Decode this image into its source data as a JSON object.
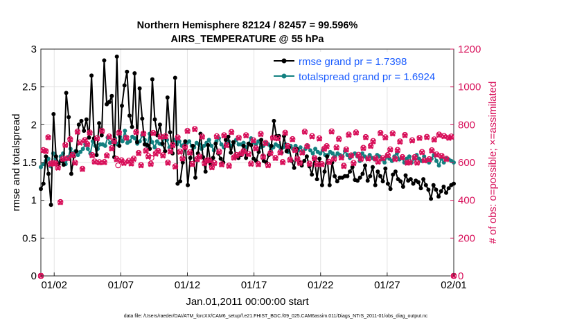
{
  "chart_data": {
    "type": "line",
    "title_line1": "Northern Hemisphere 82124 / 82457 = 99.596%",
    "title_line2": "AIRS_TEMPERATURE @ 55 hPa",
    "xlabel": "Jan.01,2011 00:00:00 start",
    "ylabel_left": "rmse and totalspread",
    "ylabel_right": "# of obs: o=possible; ×=assimilated",
    "footnote": "data file: /Users/raeder/DAI/ATM_forcXX/CAM6_setup/f.e21.FHIST_BGC.f09_025.CAM6assim.011/Diags_NTrS_2011-01/obs_diag_output.nc",
    "xlim": [
      0,
      31
    ],
    "ylim_left": [
      0,
      3
    ],
    "ylim_right": [
      0,
      1200
    ],
    "x_ticks": [
      1,
      6,
      11,
      16,
      21,
      26,
      31
    ],
    "x_tick_labels": [
      "01/02",
      "01/07",
      "01/12",
      "01/17",
      "01/22",
      "01/27",
      "02/01"
    ],
    "y_left_ticks": [
      "0",
      "0.5",
      "1",
      "1.5",
      "2",
      "2.5",
      "3"
    ],
    "y_right_ticks": [
      "0",
      "200",
      "400",
      "600",
      "800",
      "1000",
      "1200"
    ],
    "colors": {
      "rmse": "#000000",
      "spread": "#138080",
      "obs": "#d8105a",
      "legend_text": "#1a5cff"
    },
    "legend": [
      {
        "name": "rmse grand pr = 1.7398",
        "key": "rmse"
      },
      {
        "name": "totalspread grand pr = 1.6924",
        "key": "spread"
      }
    ],
    "series": [
      {
        "name": "rmse",
        "values": [
          1.15,
          1.22,
          1.58,
          1.35,
          0.94,
          2.14,
          1.58,
          1.48,
          1.52,
          1.47,
          2.42,
          2.1,
          1.35,
          1.58,
          1.65,
          2.0,
          2.05,
          1.92,
          2.07,
          1.83,
          2.65,
          1.82,
          1.6,
          2.02,
          1.86,
          2.85,
          2.27,
          2.3,
          2.38,
          1.57,
          2.9,
          1.72,
          2.25,
          2.52,
          2.7,
          2.12,
          1.97,
          2.68,
          1.77,
          2.48,
          2.08,
          1.74,
          1.73,
          1.68,
          2.6,
          2.07,
          1.86,
          2.0,
          1.75,
          1.65,
          2.36,
          1.9,
          1.62,
          2.62,
          1.22,
          1.25,
          1.5,
          1.78,
          1.2,
          1.56,
          1.72,
          1.3,
          1.62,
          1.88,
          1.57,
          1.38,
          1.73,
          1.48,
          1.56,
          1.75,
          1.62,
          1.55,
          1.5,
          1.8,
          1.84,
          1.63,
          1.77,
          1.58,
          1.56,
          1.6,
          1.72,
          1.56,
          1.75,
          1.73,
          1.55,
          1.52,
          1.64,
          1.8,
          1.52,
          1.5,
          1.6,
          1.72,
          2.05,
          1.85,
          1.85,
          1.63,
          1.85,
          1.65,
          1.7,
          1.52,
          1.43,
          1.68,
          1.5,
          1.46,
          1.52,
          1.58,
          1.45,
          1.34,
          1.55,
          1.28,
          1.55,
          1.2,
          1.38,
          1.58,
          1.2,
          1.5,
          1.32,
          1.25,
          1.3,
          1.3,
          1.32,
          1.32,
          1.38,
          1.44,
          1.27,
          1.26,
          1.3,
          1.35,
          1.46,
          1.26,
          1.32,
          1.44,
          1.2,
          1.38,
          1.32,
          1.25,
          1.42,
          1.22,
          1.15,
          1.34,
          1.38,
          1.28,
          1.25,
          1.18,
          1.33,
          1.26,
          1.28,
          1.22,
          1.26,
          1.24,
          1.16,
          1.28,
          1.2,
          1.14,
          1.02,
          1.2,
          1.14,
          1.05,
          1.12,
          1.18,
          1.1,
          1.16,
          1.2,
          1.22
        ]
      },
      {
        "name": "totalspread",
        "values": [
          1.44,
          1.48,
          1.52,
          1.55,
          1.45,
          1.62,
          1.55,
          1.48,
          1.58,
          1.62,
          1.48,
          1.56,
          1.68,
          1.62,
          1.65,
          1.6,
          1.64,
          1.68,
          1.74,
          1.68,
          1.62,
          1.78,
          1.72,
          1.68,
          1.74,
          1.74,
          1.72,
          1.83,
          1.76,
          1.78,
          1.82,
          1.74,
          1.84,
          1.78,
          1.92,
          1.76,
          1.78,
          1.84,
          1.82,
          1.75,
          1.78,
          1.86,
          1.8,
          1.72,
          1.88,
          1.77,
          1.7,
          1.78,
          1.75,
          1.74,
          1.82,
          1.8,
          1.7,
          1.72,
          1.8,
          1.74,
          1.78,
          1.72,
          1.74,
          1.76,
          1.78,
          1.72,
          1.7,
          1.76,
          1.74,
          1.68,
          1.72,
          1.76,
          1.8,
          1.72,
          1.66,
          1.78,
          1.82,
          1.74,
          1.7,
          1.75,
          1.78,
          1.72,
          1.76,
          1.8,
          1.74,
          1.74,
          1.76,
          1.7,
          1.75,
          1.82,
          1.77,
          1.74,
          1.78,
          1.7,
          1.72,
          1.76,
          1.74,
          1.66,
          1.7,
          1.74,
          1.72,
          1.68,
          1.7,
          1.74,
          1.64,
          1.72,
          1.68,
          1.72,
          1.66,
          1.7,
          1.64,
          1.68,
          1.72,
          1.66,
          1.62,
          1.68,
          1.64,
          1.62,
          1.66,
          1.6,
          1.6,
          1.64,
          1.62,
          1.58,
          1.62,
          1.6,
          1.58,
          1.65,
          1.6,
          1.56,
          1.6,
          1.62,
          1.58,
          1.52,
          1.62,
          1.58,
          1.55,
          1.6,
          1.56,
          1.54,
          1.6,
          1.58,
          1.54,
          1.5,
          1.58,
          1.55,
          1.52,
          1.58,
          1.62,
          1.54,
          1.56,
          1.5,
          1.55,
          1.58,
          1.5,
          1.55,
          1.6,
          1.55,
          1.52,
          1.58,
          1.52,
          1.5,
          1.55,
          1.6,
          1.52,
          1.46,
          1.55,
          1.5,
          1.55,
          1.54,
          1.52,
          1.5
        ]
      },
      {
        "name": "obs_possible",
        "values": [
          0,
          666,
          661,
          734,
          594,
          599,
          596,
          574,
          391,
          620,
          694,
          624,
          724,
          641,
          600,
          764,
          707,
          567,
          719,
          698,
          759,
          640,
          606,
          729,
          602,
          768,
          603,
          638,
          738,
          676,
          714,
          619,
          759,
          612,
          599,
          732,
          610,
          596,
          621,
          762,
          651,
          587,
          754,
          664,
          634,
          594,
          757,
          649,
          662,
          738,
          639,
          739,
          600,
          660,
          693,
          580,
          733,
          658,
          622,
          683,
          768,
          654,
          593,
          778,
          619,
          632,
          738,
          598,
          612,
          612,
          576,
          598,
          739,
          658,
          591,
          745,
          693,
          584,
          762,
          627,
          639,
          732,
          648,
          661,
          745,
          646,
          595,
          718,
          676,
          592,
          752,
          632,
          704,
          587,
          651,
          732,
          625,
          729,
          654,
          603,
          758,
          688,
          616,
          724,
          667,
          621,
          599,
          654,
          764,
          687,
          594,
          740,
          624,
          592,
          728,
          592,
          674,
          687,
          604,
          765,
          621,
          681,
          726,
          628,
          583,
          670,
          748,
          638,
          598,
          760,
          641,
          621,
          678,
          735,
          622,
          689,
          714,
          623,
          606,
          757,
          624,
          734,
          640,
          670,
          755,
          620,
          667,
          712,
          629,
          746,
          600,
          602,
          718,
          629,
          600,
          731,
          656,
          612,
          736,
          618,
          665,
          723,
          643,
          748,
          636,
          741,
          620,
          732,
          738,
          0
        ]
      },
      {
        "name": "obs_assimilated",
        "values": [
          0,
          664,
          659,
          732,
          590,
          597,
          594,
          571,
          389,
          618,
          691,
          621,
          721,
          638,
          597,
          761,
          703,
          564,
          716,
          695,
          756,
          637,
          603,
          726,
          599,
          765,
          600,
          635,
          735,
          673,
          711,
          616,
          756,
          609,
          596,
          729,
          606,
          593,
          618,
          759,
          648,
          584,
          751,
          661,
          631,
          591,
          754,
          645,
          659,
          735,
          636,
          736,
          597,
          657,
          690,
          577,
          730,
          655,
          619,
          680,
          765,
          651,
          590,
          775,
          616,
          629,
          735,
          595,
          609,
          609,
          573,
          595,
          736,
          655,
          588,
          742,
          690,
          581,
          759,
          624,
          636,
          729,
          645,
          658,
          742,
          643,
          592,
          715,
          673,
          589,
          749,
          629,
          701,
          584,
          648,
          729,
          622,
          726,
          651,
          600,
          755,
          685,
          613,
          721,
          664,
          618,
          596,
          651,
          761,
          684,
          591,
          737,
          621,
          589,
          725,
          589,
          671,
          684,
          601,
          762,
          618,
          678,
          723,
          625,
          580,
          667,
          745,
          635,
          595,
          757,
          638,
          618,
          675,
          732,
          619,
          686,
          711,
          620,
          603,
          754,
          621,
          731,
          637,
          667,
          752,
          617,
          664,
          709,
          626,
          743,
          597,
          599,
          715,
          626,
          597,
          728,
          653,
          609,
          733,
          615,
          662,
          720,
          640,
          745,
          633,
          738,
          617,
          729,
          735,
          0
        ]
      }
    ],
    "extra_possible_markers": [
      {
        "x": 5.8,
        "y": 585
      },
      {
        "x": 8.3,
        "y": 625
      },
      {
        "x": 14.7,
        "y": 640
      }
    ]
  }
}
